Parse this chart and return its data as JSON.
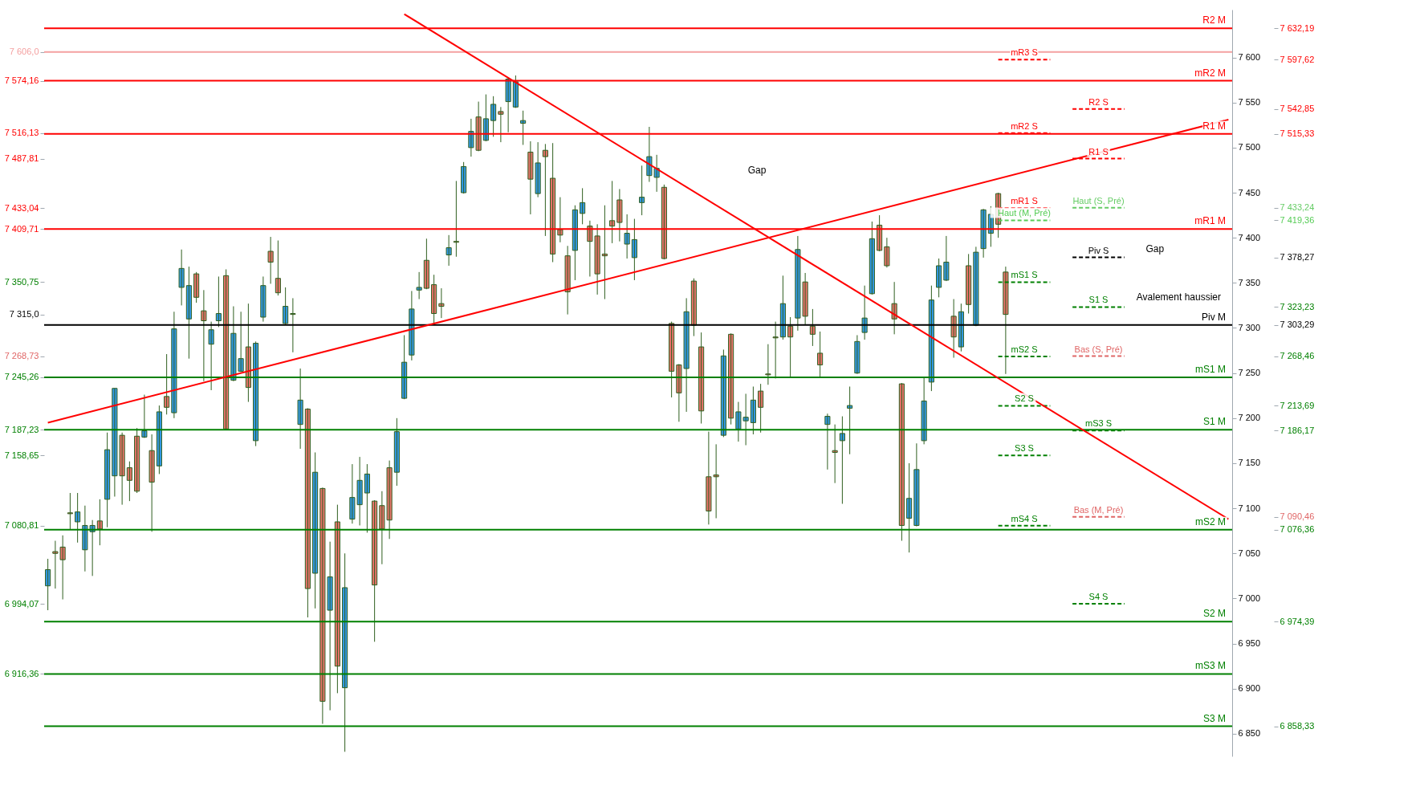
{
  "chart_data": {
    "type": "candlestick",
    "categories": [
      null,
      null,
      null,
      null,
      null,
      null,
      null,
      null,
      null,
      null,
      null,
      null,
      null,
      null,
      null,
      null,
      null,
      null,
      null,
      null,
      null,
      null,
      null,
      null,
      null,
      null,
      null,
      null,
      null,
      null,
      null,
      null,
      null,
      null,
      null,
      null,
      null,
      null,
      null,
      null,
      null,
      null,
      null,
      null,
      null,
      null,
      null,
      null,
      null,
      null,
      null,
      null,
      null,
      null,
      null,
      null,
      null,
      null,
      null,
      null,
      null,
      null,
      null,
      null,
      null,
      null,
      null,
      null,
      null,
      null,
      null,
      null,
      null,
      null,
      null,
      null,
      null,
      null,
      null,
      null,
      null,
      null,
      null,
      null,
      null,
      null,
      null,
      null,
      null,
      null,
      null,
      null,
      null,
      null,
      null,
      null,
      null,
      null,
      null,
      null,
      null,
      null,
      null,
      null,
      null,
      null,
      null,
      null,
      null,
      null,
      null,
      null,
      null,
      null,
      null,
      null,
      null,
      null,
      null,
      null,
      null,
      null,
      null,
      null,
      null,
      null,
      null,
      null,
      null,
      null,
      null,
      null,
      null,
      null,
      null,
      null,
      null,
      null,
      null,
      null,
      null,
      null,
      null,
      null,
      null,
      null,
      null,
      null,
      null,
      null,
      null,
      null,
      null,
      null,
      null,
      null,
      null,
      null,
      null,
      null
    ],
    "ohlc": [
      [
        7014,
        7044,
        6987,
        7032
      ],
      [
        7052,
        7064,
        7011,
        7050
      ],
      [
        7057,
        7070,
        6999,
        7043
      ],
      [
        7095,
        7117,
        7077,
        7094
      ],
      [
        7085,
        7117,
        7062,
        7096
      ],
      [
        7054,
        7103,
        7030,
        7081
      ],
      [
        7074,
        7087,
        7025,
        7081
      ],
      [
        7086,
        7110,
        7059,
        7077
      ],
      [
        7110,
        7184,
        7079,
        7165
      ],
      [
        7136,
        7233,
        7113,
        7233
      ],
      [
        7181,
        7184,
        7104,
        7136
      ],
      [
        7145,
        7152,
        7108,
        7131
      ],
      [
        7180,
        7189,
        7117,
        7119
      ],
      [
        7179,
        7226,
        7178,
        7186
      ],
      [
        7164,
        7182,
        7074,
        7129
      ],
      [
        7147,
        7214,
        7138,
        7207
      ],
      [
        7224,
        7271,
        7204,
        7212
      ],
      [
        7206,
        7318,
        7200,
        7299
      ],
      [
        7345,
        7387,
        7325,
        7366
      ],
      [
        7310,
        7368,
        7266,
        7347
      ],
      [
        7360,
        7362,
        7328,
        7334
      ],
      [
        7319,
        7342,
        7241,
        7308
      ],
      [
        7282,
        7307,
        7231,
        7298
      ],
      [
        7308,
        7357,
        7301,
        7316
      ],
      [
        7358,
        7365,
        7187,
        7188
      ],
      [
        7242,
        7324,
        7241,
        7294
      ],
      [
        7252,
        7318,
        7251,
        7266
      ],
      [
        7279,
        7327,
        7218,
        7234
      ],
      [
        7175,
        7285,
        7169,
        7283
      ],
      [
        7312,
        7357,
        7307,
        7347
      ],
      [
        7385,
        7401,
        7349,
        7373
      ],
      [
        7355,
        7397,
        7336,
        7339
      ],
      [
        7305,
        7345,
        7304,
        7324
      ],
      [
        7316,
        7333,
        7273,
        7315
      ],
      [
        7193,
        7255,
        7166,
        7220
      ],
      [
        7210,
        7211,
        6979,
        7011
      ],
      [
        7028,
        7162,
        6989,
        7140
      ],
      [
        7122,
        7123,
        6861,
        6886
      ],
      [
        6987,
        7063,
        6876,
        7024
      ],
      [
        7085,
        7104,
        6895,
        6925
      ],
      [
        6901,
        7050,
        6830,
        7012
      ],
      [
        7088,
        7149,
        7083,
        7112
      ],
      [
        7104,
        7157,
        7081,
        7131
      ],
      [
        7117,
        7149,
        7073,
        7138
      ],
      [
        7108,
        7109,
        6952,
        7015
      ],
      [
        7103,
        7119,
        7038,
        7077
      ],
      [
        7145,
        7153,
        7066,
        7087
      ],
      [
        7140,
        7200,
        7125,
        7185
      ],
      [
        7222,
        7292,
        7221,
        7262
      ],
      [
        7270,
        7341,
        7264,
        7321
      ],
      [
        7342,
        7362,
        7332,
        7345
      ],
      [
        7375,
        7399,
        7343,
        7344
      ],
      [
        7348,
        7359,
        7303,
        7316
      ],
      [
        7327,
        7344,
        7311,
        7324
      ],
      [
        7381,
        7403,
        7369,
        7389
      ],
      [
        7396,
        7463,
        7379,
        7395
      ],
      [
        7450,
        7484,
        7449,
        7479
      ],
      [
        7500,
        7532,
        7490,
        7518
      ],
      [
        7534,
        7551,
        7496,
        7497
      ],
      [
        7508,
        7559,
        7507,
        7532
      ],
      [
        7530,
        7557,
        7512,
        7548
      ],
      [
        7540,
        7545,
        7506,
        7537
      ],
      [
        7551,
        7577,
        7517,
        7576
      ],
      [
        7545,
        7580,
        7544,
        7573
      ],
      [
        7527,
        7541,
        7503,
        7530
      ],
      [
        7495,
        7507,
        7426,
        7465
      ],
      [
        7449,
        7506,
        7445,
        7483
      ],
      [
        7497,
        7504,
        7402,
        7490
      ],
      [
        7466,
        7505,
        7373,
        7382
      ],
      [
        7409,
        7445,
        7395,
        7403
      ],
      [
        7380,
        7391,
        7315,
        7340
      ],
      [
        7386,
        7436,
        7353,
        7431
      ],
      [
        7427,
        7455,
        7415,
        7439
      ],
      [
        7413,
        7419,
        7357,
        7396
      ],
      [
        7402,
        7415,
        7337,
        7360
      ],
      [
        7382,
        7436,
        7332,
        7380
      ],
      [
        7419,
        7463,
        7394,
        7413
      ],
      [
        7442,
        7454,
        7396,
        7417
      ],
      [
        7393,
        7426,
        7377,
        7405
      ],
      [
        7378,
        7421,
        7353,
        7398
      ],
      [
        7439,
        7480,
        7425,
        7445
      ],
      [
        7469,
        7523,
        7462,
        7490
      ],
      [
        7467,
        7492,
        7451,
        7477
      ],
      [
        7456,
        7459,
        7376,
        7377
      ],
      [
        7305,
        7307,
        7223,
        7252
      ],
      [
        7259,
        7260,
        7196,
        7228
      ],
      [
        7255,
        7333,
        7207,
        7318
      ],
      [
        7352,
        7355,
        7291,
        7303
      ],
      [
        7279,
        7295,
        7194,
        7208
      ],
      [
        7135,
        7185,
        7082,
        7097
      ],
      [
        7137,
        7171,
        7089,
        7135
      ],
      [
        7181,
        7276,
        7179,
        7269
      ],
      [
        7293,
        7294,
        7193,
        7200
      ],
      [
        7188,
        7218,
        7174,
        7207
      ],
      [
        7197,
        7227,
        7170,
        7201
      ],
      [
        7195,
        7235,
        7182,
        7220
      ],
      [
        7230,
        7238,
        7184,
        7212
      ],
      [
        7249,
        7282,
        7237,
        7248
      ],
      [
        7290,
        7307,
        7244,
        7289
      ],
      [
        7290,
        7358,
        7287,
        7327
      ],
      [
        7302,
        7312,
        7245,
        7290
      ],
      [
        7311,
        7402,
        7297,
        7387
      ],
      [
        7351,
        7361,
        7304,
        7313
      ],
      [
        7302,
        7321,
        7280,
        7293
      ],
      [
        7272,
        7296,
        7245,
        7259
      ],
      [
        7193,
        7205,
        7143,
        7202
      ],
      [
        7164,
        7193,
        7128,
        7162
      ],
      [
        7175,
        7202,
        7105,
        7183
      ],
      [
        7211,
        7235,
        7160,
        7214
      ],
      [
        7250,
        7292,
        7249,
        7285
      ],
      [
        7295,
        7347,
        7287,
        7311
      ],
      [
        7338,
        7418,
        7337,
        7399
      ],
      [
        7414,
        7425,
        7385,
        7386
      ],
      [
        7390,
        7400,
        7367,
        7369
      ],
      [
        7327,
        7351,
        7293,
        7310
      ],
      [
        7238,
        7239,
        7064,
        7081
      ],
      [
        7089,
        7150,
        7051,
        7111
      ],
      [
        7081,
        7172,
        7080,
        7143
      ],
      [
        7175,
        7245,
        7171,
        7219
      ],
      [
        7240,
        7347,
        7230,
        7331
      ],
      [
        7345,
        7377,
        7334,
        7369
      ],
      [
        7353,
        7402,
        7352,
        7373
      ],
      [
        7313,
        7332,
        7267,
        7290
      ],
      [
        7279,
        7327,
        7274,
        7318
      ],
      [
        7369,
        7382,
        7316,
        7326
      ],
      [
        7303,
        7390,
        7302,
        7384
      ],
      [
        7388,
        7432,
        7378,
        7431
      ],
      [
        7405,
        7435,
        7390,
        7426
      ],
      [
        7449,
        7450,
        7400,
        7415
      ],
      [
        7362,
        7368,
        7249,
        7315
      ],
      null,
      null,
      null,
      null,
      null,
      null,
      null,
      null,
      null,
      null,
      null,
      null,
      null,
      null,
      null,
      null,
      null,
      null,
      null,
      null,
      null,
      null,
      null,
      null,
      null,
      null,
      null,
      null,
      null,
      null
    ],
    "colors": [
      "#3399e6",
      "#e8736c",
      "#e8736c",
      "#e8736c",
      "#3399e6",
      "#3399e6",
      "#3399e6",
      "#e8736c",
      "#3399e6",
      "#3399e6",
      "#e8736c",
      "#e8736c",
      "#e8736c",
      "#3399e6",
      "#e8736c",
      "#3399e6",
      "#e8736c",
      "#3399e6",
      "#3399e6",
      "#3399e6",
      "#e8736c",
      "#e8736c",
      "#3399e6",
      "#3399e6",
      "#e8736c",
      "#3399e6",
      "#3399e6",
      "#e8736c",
      "#3399e6",
      "#3399e6",
      "#e8736c",
      "#e8736c",
      "#3399e6",
      "#e8736c",
      "#3399e6",
      "#e8736c",
      "#3399e6",
      "#e8736c",
      "#3399e6",
      "#e8736c",
      "#3399e6",
      "#3399e6",
      "#3399e6",
      "#3399e6",
      "#e8736c",
      "#e8736c",
      "#e8736c",
      "#3399e6",
      "#3399e6",
      "#3399e6",
      "#3399e6",
      "#e8736c",
      "#e8736c",
      "#e8736c",
      "#3399e6",
      "#e8736c",
      "#3399e6",
      "#3399e6",
      "#e8736c",
      "#3399e6",
      "#3399e6",
      "#e8736c",
      "#3399e6",
      "#3399e6",
      "#3399e6",
      "#e8736c",
      "#3399e6",
      "#e8736c",
      "#e8736c",
      "#e8736c",
      "#e8736c",
      "#3399e6",
      "#3399e6",
      "#e8736c",
      "#e8736c",
      "#e8736c",
      "#e8736c",
      "#e8736c",
      "#3399e6",
      "#3399e6",
      "#3399e6",
      "#3399e6",
      "#3399e6",
      "#e8736c",
      "#e8736c",
      "#e8736c",
      "#3399e6",
      "#e8736c",
      "#e8736c",
      "#e8736c",
      "#e8736c",
      "#3399e6",
      "#e8736c",
      "#3399e6",
      "#3399e6",
      "#3399e6",
      "#e8736c",
      "#e8736c",
      "#e8736c",
      "#3399e6",
      "#e8736c",
      "#3399e6",
      "#e8736c",
      "#e8736c",
      "#e8736c",
      "#3399e6",
      "#e8736c",
      "#3399e6",
      "#3399e6",
      "#3399e6",
      "#3399e6",
      "#3399e6",
      "#e8736c",
      "#e8736c",
      "#e8736c",
      "#e8736c",
      "#3399e6",
      "#3399e6",
      "#3399e6",
      "#3399e6",
      "#3399e6",
      "#3399e6",
      "#e8736c",
      "#3399e6",
      "#e8736c",
      "#3399e6",
      "#3399e6",
      "#3399e6",
      "#e8736c",
      "#e8736c",
      null,
      null,
      null,
      null,
      null,
      null,
      null,
      null,
      null,
      null,
      null,
      null,
      null,
      null,
      null,
      null,
      null,
      null,
      null,
      null,
      null,
      null,
      null,
      null,
      null,
      null,
      null,
      null,
      null,
      null
    ],
    "series": [
      {
        "type": "line",
        "color": "#ff0000",
        "values": [
          7195,
          null,
          null,
          null,
          null,
          null,
          null,
          null,
          null,
          null,
          null,
          null,
          null,
          null,
          null,
          null,
          null,
          null,
          null,
          null,
          null,
          null,
          null,
          null,
          null,
          null,
          null,
          null,
          null,
          null,
          null,
          null,
          null,
          null,
          null,
          null,
          null,
          null,
          null,
          null,
          null,
          null,
          null,
          null,
          null,
          null,
          null,
          null,
          null,
          null,
          null,
          null,
          null,
          null,
          null,
          null,
          null,
          null,
          null,
          null,
          null,
          null,
          null,
          null,
          null,
          null,
          null,
          null,
          null,
          null,
          null,
          null,
          null,
          null,
          null,
          null,
          null,
          null,
          null,
          null,
          null,
          null,
          null,
          null,
          null,
          null,
          null,
          null,
          null,
          null,
          null,
          null,
          null,
          null,
          null,
          null,
          null,
          null,
          null,
          null,
          null,
          null,
          null,
          null,
          null,
          null,
          null,
          null,
          null,
          null,
          null,
          null,
          null,
          null,
          null,
          null,
          null,
          null,
          null,
          null,
          null,
          null,
          null,
          null,
          null,
          null,
          null,
          null,
          null,
          null,
          null,
          null,
          null,
          null,
          null,
          null,
          null,
          null,
          null,
          null,
          null,
          null,
          null,
          null,
          null,
          null,
          null,
          null,
          null,
          null,
          null,
          null,
          null,
          null,
          null,
          null,
          null,
          null,
          null,
          7531
        ]
      },
      {
        "type": "line",
        "color": "#ff0000",
        "values": [
          null,
          null,
          null,
          null,
          null,
          null,
          null,
          null,
          null,
          null,
          null,
          null,
          null,
          null,
          null,
          null,
          null,
          null,
          null,
          null,
          null,
          null,
          null,
          null,
          null,
          null,
          null,
          null,
          null,
          null,
          null,
          null,
          null,
          null,
          null,
          null,
          null,
          null,
          null,
          null,
          null,
          null,
          null,
          null,
          null,
          null,
          null,
          null,
          7648,
          null,
          null,
          null,
          null,
          null,
          null,
          null,
          null,
          null,
          null,
          null,
          null,
          null,
          null,
          null,
          null,
          null,
          null,
          null,
          null,
          null,
          null,
          null,
          null,
          null,
          null,
          null,
          null,
          null,
          null,
          null,
          null,
          null,
          null,
          null,
          null,
          null,
          null,
          null,
          null,
          null,
          null,
          null,
          null,
          null,
          null,
          null,
          null,
          null,
          null,
          null,
          null,
          null,
          null,
          null,
          null,
          null,
          null,
          null,
          null,
          null,
          null,
          null,
          null,
          null,
          null,
          null,
          null,
          null,
          null,
          null,
          null,
          null,
          null,
          null,
          null,
          null,
          null,
          null,
          null,
          null,
          null,
          null,
          null,
          null,
          null,
          null,
          null,
          null,
          null,
          null,
          null,
          null,
          null,
          null,
          null,
          null,
          null,
          null,
          null,
          null,
          null,
          null,
          null,
          null,
          null,
          null,
          null,
          null,
          null,
          7088
        ]
      }
    ],
    "ylim": [
      6825,
      7653
    ],
    "yticks": [
      {
        "value": 6850,
        "label": "6 850"
      },
      {
        "value": 6900,
        "label": "6 900"
      },
      {
        "value": 6950,
        "label": "6 950"
      },
      {
        "value": 7000,
        "label": "7 000"
      },
      {
        "value": 7050,
        "label": "7 050"
      },
      {
        "value": 7100,
        "label": "7 100"
      },
      {
        "value": 7150,
        "label": "7 150"
      },
      {
        "value": 7200,
        "label": "7 200"
      },
      {
        "value": 7250,
        "label": "7 250"
      },
      {
        "value": 7300,
        "label": "7 300"
      },
      {
        "value": 7350,
        "label": "7 350"
      },
      {
        "value": 7400,
        "label": "7 400"
      },
      {
        "value": 7450,
        "label": "7 450"
      },
      {
        "value": 7500,
        "label": "7 500"
      },
      {
        "value": 7550,
        "label": "7 550"
      },
      {
        "value": 7600,
        "label": "7 600"
      }
    ],
    "tick_labels": "y",
    "ref_lines": [
      {
        "axis": "y",
        "value": 7632.19,
        "label": "R2 M",
        "color": "#ff0000",
        "line_style": "solid"
      },
      {
        "axis": "y",
        "value": 7606.0,
        "label": null,
        "color": "#f4a0a0",
        "line_style": "solid"
      },
      {
        "axis": "y",
        "value": 7574.16,
        "label": "mR2 M",
        "color": "#ff0000",
        "line_style": "solid"
      },
      {
        "axis": "y",
        "value": 7515.33,
        "label": "R1 M",
        "color": "#ff0000",
        "line_style": "solid"
      },
      {
        "axis": "y",
        "value": 7409.71,
        "label": "mR1 M",
        "color": "#ff0000",
        "line_style": "solid"
      },
      {
        "axis": "y",
        "value": 7303.29,
        "label": "Piv M",
        "color": "#000000",
        "line_style": "solid"
      },
      {
        "axis": "y",
        "value": 7245.26,
        "label": "mS1 M",
        "color": "#008000",
        "line_style": "solid"
      },
      {
        "axis": "y",
        "value": 7187.23,
        "label": "S1 M",
        "color": "#008000",
        "line_style": "solid"
      },
      {
        "axis": "y",
        "value": 7076.36,
        "label": "mS2 M",
        "color": "#008000",
        "line_style": "solid"
      },
      {
        "axis": "y",
        "value": 6974.39,
        "label": "S2 M",
        "color": "#008000",
        "line_style": "solid"
      },
      {
        "axis": "y",
        "value": 6916.36,
        "label": "mS3 M",
        "color": "#008000",
        "line_style": "solid"
      },
      {
        "axis": "y",
        "value": 6858.33,
        "label": "S3 M",
        "color": "#008000",
        "line_style": "solid"
      },
      {
        "axis": "y",
        "value": 7597.62,
        "label": "mR3 S",
        "color": "#ff0000",
        "line_style": "dashed"
      },
      {
        "axis": "y",
        "value": 7542.85,
        "label": "R2 S",
        "color": "#ff0000",
        "line_style": "dashed"
      },
      {
        "axis": "y",
        "value": 7516.13,
        "label": "mR2 S",
        "color": "#ff0000",
        "line_style": "dashed"
      },
      {
        "axis": "y",
        "value": 7487.81,
        "label": "R1 S",
        "color": "#ff0000",
        "line_style": "dashed"
      },
      {
        "axis": "y",
        "value": 7433.04,
        "label": "mR1 S",
        "color": "#ff0000",
        "line_style": "dashed"
      },
      {
        "axis": "y",
        "value": 7433.24,
        "label": "Haut (S, Pré)",
        "color": "#66cc66",
        "line_style": "dashed"
      },
      {
        "axis": "y",
        "value": 7419.36,
        "label": "Haut (M, Pré)",
        "color": "#55cc55",
        "line_style": "dashed"
      },
      {
        "axis": "y",
        "value": 7378.27,
        "label": "Piv S",
        "color": "#000000",
        "line_style": "dashed"
      },
      {
        "axis": "y",
        "value": 7350.75,
        "label": "mS1 S",
        "color": "#008000",
        "line_style": "dashed"
      },
      {
        "axis": "y",
        "value": 7323.23,
        "label": "S1 S",
        "color": "#008000",
        "line_style": "dashed"
      },
      {
        "axis": "y",
        "value": 7268.46,
        "label": "mS2 S",
        "color": "#008000",
        "line_style": "dashed"
      },
      {
        "axis": "y",
        "value": 7268.73,
        "label": "Bas (S, Pré)",
        "color": "#e06666",
        "line_style": "dashed"
      },
      {
        "axis": "y",
        "value": 7213.69,
        "label": "S2 S",
        "color": "#008000",
        "line_style": "dashed"
      },
      {
        "axis": "y",
        "value": 7186.17,
        "label": "mS3 S",
        "color": "#008000",
        "line_style": "dashed"
      },
      {
        "axis": "y",
        "value": 7158.65,
        "label": "S3 S",
        "color": "#008000",
        "line_style": "dashed"
      },
      {
        "axis": "y",
        "value": 7090.46,
        "label": "Bas (M, Pré)",
        "color": "#e06666",
        "line_style": "dashed"
      },
      {
        "axis": "y",
        "value": 7080.81,
        "label": "mS4 S",
        "color": "#008000",
        "line_style": "dashed"
      },
      {
        "axis": "y",
        "value": 6994.07,
        "label": "S4 S",
        "color": "#008000",
        "line_style": "dashed"
      }
    ],
    "y2lim": [
      6825,
      7653
    ],
    "y2ticks": [
      {
        "value": 7632.19,
        "label": "7 632,19"
      },
      {
        "value": 7597.62,
        "label": "7 597,62"
      },
      {
        "value": 7542.85,
        "label": "7 542,85"
      },
      {
        "value": 7515.33,
        "label": "7 515,33"
      },
      {
        "value": 7433.24,
        "label": "7 433,24"
      },
      {
        "value": 7419.36,
        "label": "7 419,36"
      },
      {
        "value": 7378.27,
        "label": "7 378,27"
      },
      {
        "value": 7323.23,
        "label": "7 323,23"
      },
      {
        "value": 7303.29,
        "label": "7 303,29"
      },
      {
        "value": 7268.46,
        "label": "7 268,46"
      },
      {
        "value": 7213.69,
        "label": "7 213,69"
      },
      {
        "value": 7186.17,
        "label": "7 186,17"
      },
      {
        "value": 7090.46,
        "label": "7 090,46"
      },
      {
        "value": 7076.36,
        "label": "7 076,36"
      },
      {
        "value": 6974.39,
        "label": "6 974,39"
      },
      {
        "value": 6858.33,
        "label": "6 858,33"
      }
    ],
    "y3lim": [
      6825,
      7653
    ],
    "y3ticks": [
      {
        "value": 7606.0,
        "label": "7 606,0"
      },
      {
        "value": 7574.16,
        "label": "7 574,16"
      },
      {
        "value": 7516.13,
        "label": "7 516,13"
      },
      {
        "value": 7487.81,
        "label": "7 487,81"
      },
      {
        "value": 7433.04,
        "label": "7 433,04"
      },
      {
        "value": 7409.71,
        "label": "7 409,71"
      },
      {
        "value": 7350.75,
        "label": "7 350,75"
      },
      {
        "value": 7315.0,
        "label": "7 315,0"
      },
      {
        "value": 7268.73,
        "label": "7 268,73"
      },
      {
        "value": 7245.26,
        "label": "7 245,26"
      },
      {
        "value": 7187.23,
        "label": "7 187,23"
      },
      {
        "value": 7158.65,
        "label": "7 158,65"
      },
      {
        "value": 7080.81,
        "label": "7 080,81"
      },
      {
        "value": 6994.07,
        "label": "6 994,07"
      },
      {
        "value": 6916.36,
        "label": "6 916,36"
      }
    ],
    "annotations": [
      "Gap",
      "Gap",
      "Avalement haussier"
    ]
  }
}
